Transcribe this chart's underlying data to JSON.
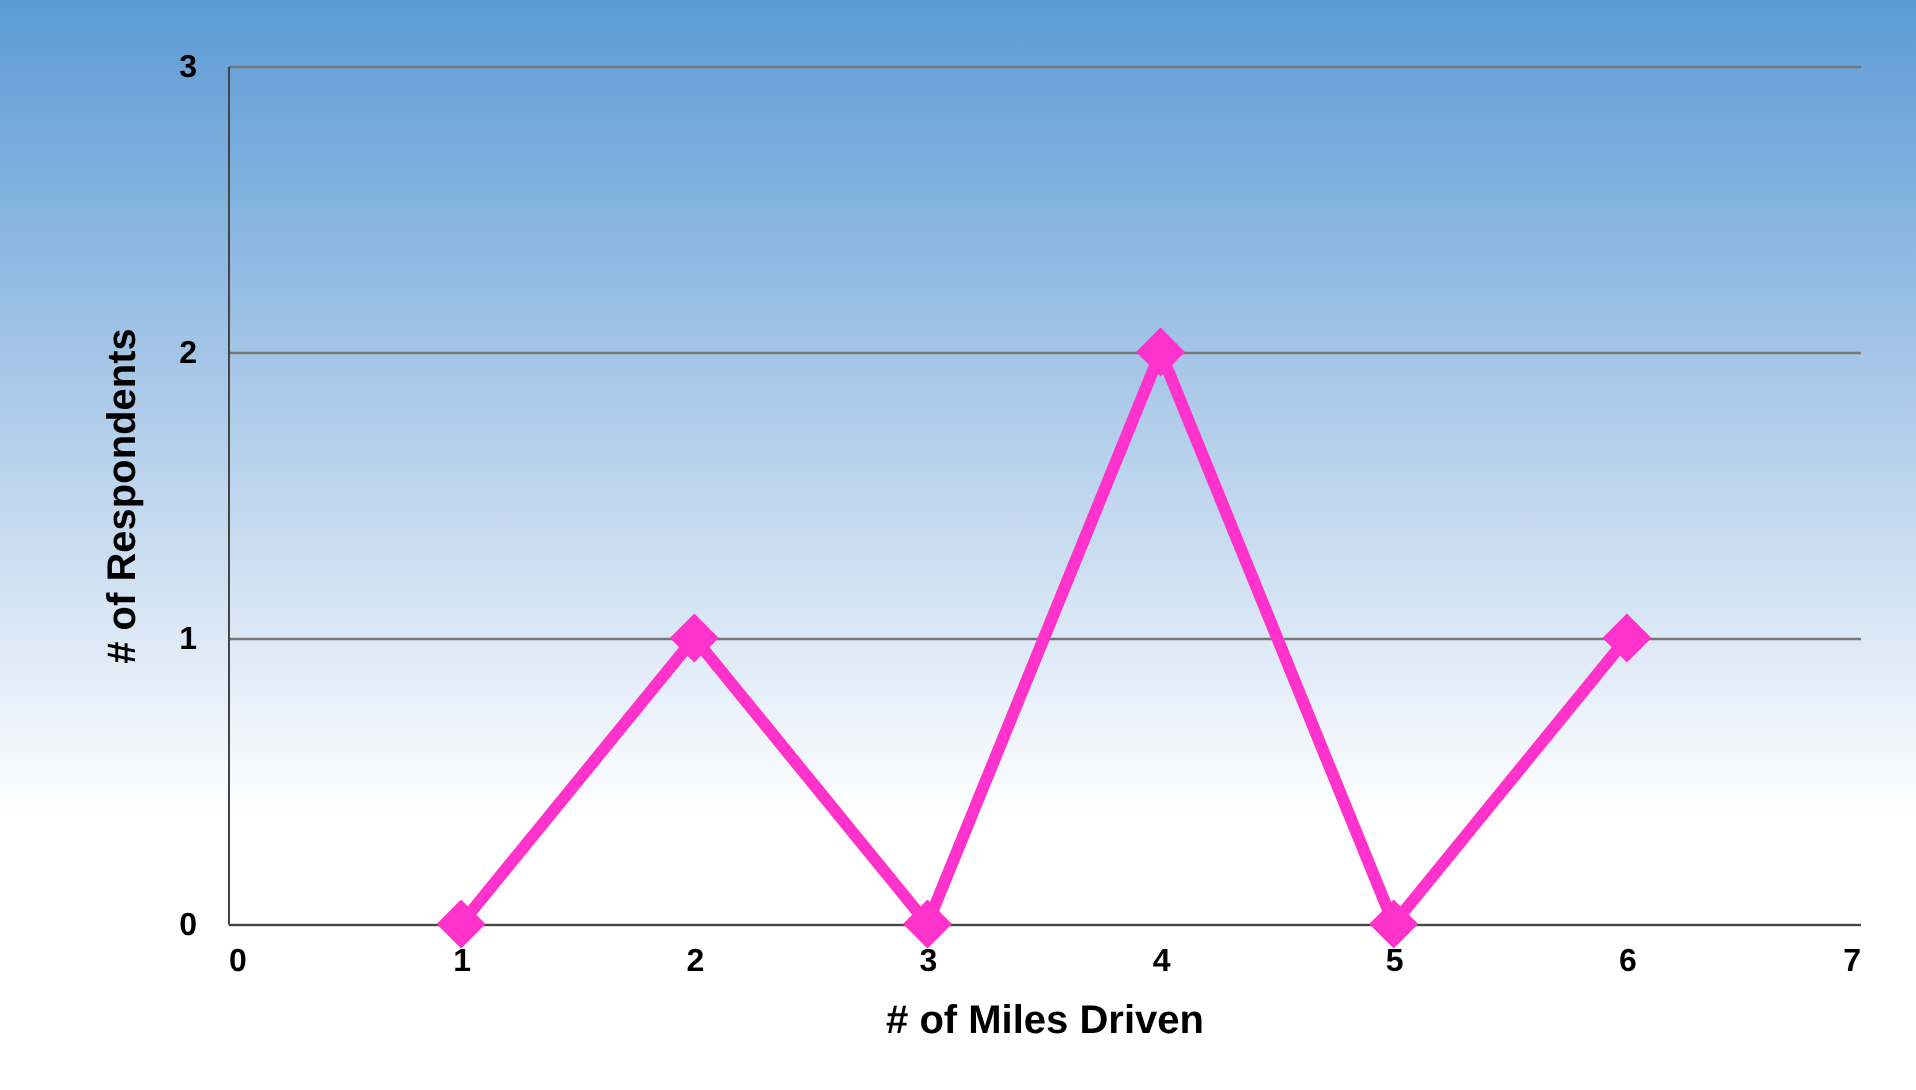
{
  "chart_data": {
    "type": "line",
    "xlabel": "# of Miles Driven",
    "ylabel": "# of Respondents",
    "x": [
      1,
      2,
      3,
      4,
      5,
      6
    ],
    "series": [
      {
        "color": "#ff33cc",
        "values": [
          0,
          1,
          0,
          2,
          0,
          1
        ]
      }
    ],
    "xlim": [
      0,
      7
    ],
    "xticks": [
      0,
      1,
      2,
      3,
      4,
      5,
      6,
      7
    ],
    "ylim": [
      0,
      3
    ],
    "yticks": [
      0,
      1,
      2,
      3
    ],
    "grid": "y",
    "marker": "diamond",
    "line_style": "solid"
  }
}
